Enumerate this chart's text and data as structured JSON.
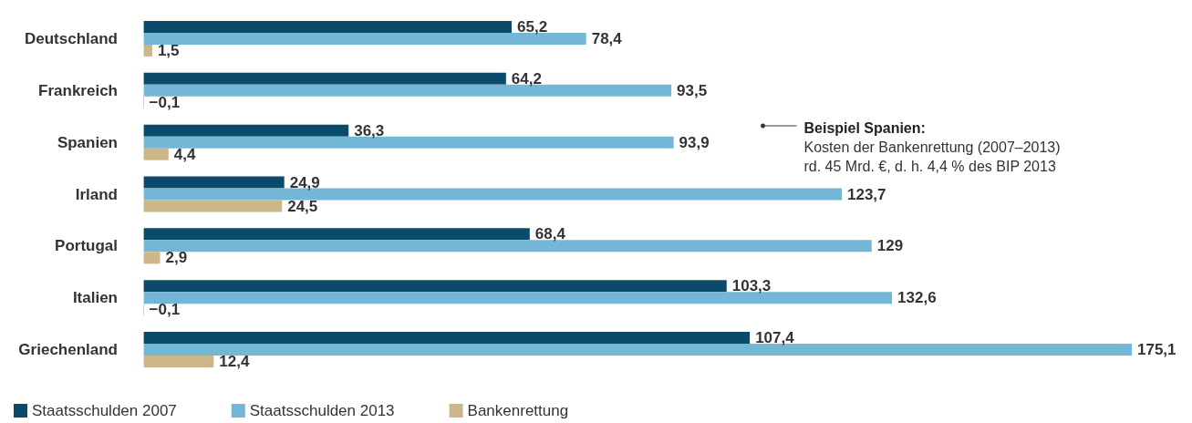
{
  "chart_data": {
    "type": "bar",
    "orientation": "horizontal",
    "categories": [
      "Deutschland",
      "Frankreich",
      "Spanien",
      "Irland",
      "Portugal",
      "Italien",
      "Griechenland"
    ],
    "legend": "bottom left",
    "grid": false,
    "series": [
      {
        "name": "Staatsschulden 2007",
        "color": "#0b4a6b",
        "values": [
          65.2,
          64.2,
          36.3,
          24.9,
          68.4,
          103.3,
          107.4
        ],
        "value_labels": [
          "65,2",
          "64,2",
          "36,3",
          "24,9",
          "68,4",
          "103,3",
          "107,4"
        ]
      },
      {
        "name": "Staatsschulden 2013",
        "color": "#74b6d6",
        "values": [
          78.4,
          93.5,
          93.9,
          123.7,
          129,
          132.6,
          175.1
        ],
        "value_labels": [
          "78,4",
          "93,5",
          "93,9",
          "123,7",
          "129",
          "132,6",
          "175,1"
        ]
      },
      {
        "name": "Bankenrettung",
        "color": "#cdb68a",
        "values": [
          1.5,
          -0.1,
          4.4,
          24.5,
          2.9,
          -0.1,
          12.4
        ],
        "value_labels": [
          "1,5",
          "−0,1",
          "4,4",
          "24,5",
          "2,9",
          "−0,1",
          "12,4"
        ]
      }
    ],
    "annotations": [
      "Beispiel Spanien:\nKosten der Bankenrettung (2007–2013)\nrd. 45 Mrd. €, d. h. 4,4 % des BIP 2013"
    ]
  }
}
